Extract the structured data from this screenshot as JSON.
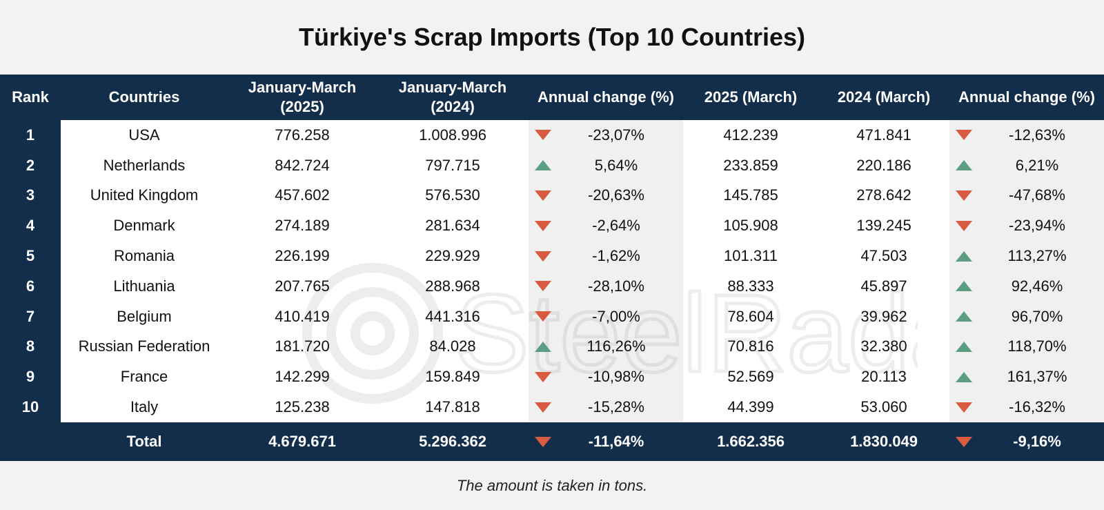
{
  "title": "Türkiye's Scrap Imports (Top 10 Countries)",
  "watermark": "SteelRadar",
  "note": "The amount is taken in tons.",
  "colors": {
    "header_bg": "#132e4b",
    "down": "#d95b3f",
    "up": "#5b9e84",
    "shade": "#f0f0f0"
  },
  "chart_data": {
    "type": "table",
    "columns": [
      "Rank",
      "Countries",
      "January-March (2025)",
      "January-March (2024)",
      "Annual change (%)",
      "2025 (March)",
      "2024 (March)",
      "Annual change (%)"
    ],
    "rows": [
      {
        "rank": "1",
        "country": "USA",
        "q1_2025": "776.258",
        "q1_2024": "1.008.996",
        "q1_dir": "down",
        "q1_change": "-23,07%",
        "m_2025": "412.239",
        "m_2024": "471.841",
        "m_dir": "down",
        "m_change": "-12,63%"
      },
      {
        "rank": "2",
        "country": "Netherlands",
        "q1_2025": "842.724",
        "q1_2024": "797.715",
        "q1_dir": "up",
        "q1_change": "5,64%",
        "m_2025": "233.859",
        "m_2024": "220.186",
        "m_dir": "up",
        "m_change": "6,21%"
      },
      {
        "rank": "3",
        "country": "United Kingdom",
        "q1_2025": "457.602",
        "q1_2024": "576.530",
        "q1_dir": "down",
        "q1_change": "-20,63%",
        "m_2025": "145.785",
        "m_2024": "278.642",
        "m_dir": "down",
        "m_change": "-47,68%"
      },
      {
        "rank": "4",
        "country": "Denmark",
        "q1_2025": "274.189",
        "q1_2024": "281.634",
        "q1_dir": "down",
        "q1_change": "-2,64%",
        "m_2025": "105.908",
        "m_2024": "139.245",
        "m_dir": "down",
        "m_change": "-23,94%"
      },
      {
        "rank": "5",
        "country": "Romania",
        "q1_2025": "226.199",
        "q1_2024": "229.929",
        "q1_dir": "down",
        "q1_change": "-1,62%",
        "m_2025": "101.311",
        "m_2024": "47.503",
        "m_dir": "up",
        "m_change": "113,27%"
      },
      {
        "rank": "6",
        "country": "Lithuania",
        "q1_2025": "207.765",
        "q1_2024": "288.968",
        "q1_dir": "down",
        "q1_change": "-28,10%",
        "m_2025": "88.333",
        "m_2024": "45.897",
        "m_dir": "up",
        "m_change": "92,46%"
      },
      {
        "rank": "7",
        "country": "Belgium",
        "q1_2025": "410.419",
        "q1_2024": "441.316",
        "q1_dir": "down",
        "q1_change": "-7,00%",
        "m_2025": "78.604",
        "m_2024": "39.962",
        "m_dir": "up",
        "m_change": "96,70%"
      },
      {
        "rank": "8",
        "country": "Russian Federation",
        "q1_2025": "181.720",
        "q1_2024": "84.028",
        "q1_dir": "up",
        "q1_change": "116,26%",
        "m_2025": "70.816",
        "m_2024": "32.380",
        "m_dir": "up",
        "m_change": "118,70%"
      },
      {
        "rank": "9",
        "country": "France",
        "q1_2025": "142.299",
        "q1_2024": "159.849",
        "q1_dir": "down",
        "q1_change": "-10,98%",
        "m_2025": "52.569",
        "m_2024": "20.113",
        "m_dir": "up",
        "m_change": "161,37%"
      },
      {
        "rank": "10",
        "country": "Italy",
        "q1_2025": "125.238",
        "q1_2024": "147.818",
        "q1_dir": "down",
        "q1_change": "-15,28%",
        "m_2025": "44.399",
        "m_2024": "53.060",
        "m_dir": "down",
        "m_change": "-16,32%"
      }
    ],
    "total": {
      "label": "Total",
      "q1_2025": "4.679.671",
      "q1_2024": "5.296.362",
      "q1_dir": "down",
      "q1_change": "-11,64%",
      "m_2025": "1.662.356",
      "m_2024": "1.830.049",
      "m_dir": "down",
      "m_change": "-9,16%"
    }
  }
}
